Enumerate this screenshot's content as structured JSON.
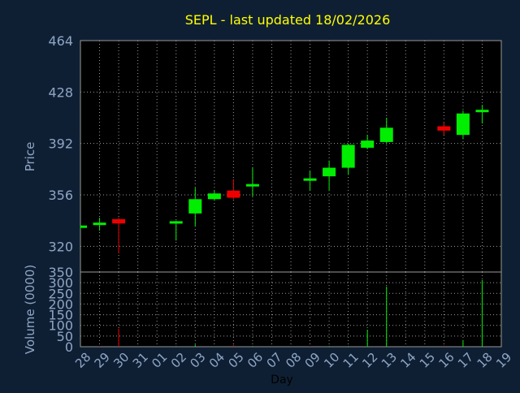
{
  "colors": {
    "background": "#0f1f33",
    "plot_background": "#000000",
    "up": "#00ee00",
    "down": "#ee0000",
    "title": "#ffff00",
    "axis_text": "#8ea6c6",
    "grid": "#9a9a9a"
  },
  "chart_data": [
    {
      "type": "candlestick",
      "title": "SEPL - last updated 18/02/2026",
      "ylabel": "Price",
      "ylim": [
        302,
        464
      ],
      "yticks": [
        464,
        428,
        392,
        356,
        320
      ],
      "grid": true,
      "x": [
        "28",
        "29",
        "30",
        "31",
        "01",
        "02",
        "03",
        "04",
        "05",
        "06",
        "07",
        "08",
        "09",
        "10",
        "11",
        "12",
        "13",
        "14",
        "15",
        "16",
        "17",
        "18",
        "19"
      ],
      "candles": [
        {
          "x": "28",
          "open": 333,
          "high": 334,
          "low": 332,
          "close": 334
        },
        {
          "x": "29",
          "open": 336,
          "high": 340,
          "low": 331,
          "close": 336
        },
        {
          "x": "30",
          "open": 339,
          "high": 340,
          "low": 315,
          "close": 336
        },
        {
          "x": "02",
          "open": 337,
          "high": 338,
          "low": 324,
          "close": 337
        },
        {
          "x": "03",
          "open": 343,
          "high": 361,
          "low": 334,
          "close": 353
        },
        {
          "x": "04",
          "open": 353,
          "high": 359,
          "low": 352,
          "close": 357
        },
        {
          "x": "05",
          "open": 359,
          "high": 367,
          "low": 353,
          "close": 354
        },
        {
          "x": "06",
          "open": 363,
          "high": 375,
          "low": 355,
          "close": 363
        },
        {
          "x": "09",
          "open": 367,
          "high": 373,
          "low": 359,
          "close": 367
        },
        {
          "x": "10",
          "open": 369,
          "high": 380,
          "low": 359,
          "close": 375
        },
        {
          "x": "11",
          "open": 375,
          "high": 392,
          "low": 370,
          "close": 391
        },
        {
          "x": "12",
          "open": 389,
          "high": 398,
          "low": 388,
          "close": 394
        },
        {
          "x": "13",
          "open": 393,
          "high": 410,
          "low": 392,
          "close": 403
        },
        {
          "x": "16",
          "open": 404,
          "high": 407,
          "low": 398,
          "close": 401
        },
        {
          "x": "17",
          "open": 398,
          "high": 415,
          "low": 395,
          "close": 413
        },
        {
          "x": "18",
          "open": 414,
          "high": 419,
          "low": 406,
          "close": 415
        }
      ]
    },
    {
      "type": "bar",
      "ylabel": "Volume (0000)",
      "xlabel": "Day",
      "ylim": [
        0,
        350
      ],
      "yticks": [
        350,
        300,
        250,
        200,
        150,
        100,
        50,
        0
      ],
      "grid": true,
      "x": [
        "28",
        "29",
        "30",
        "31",
        "01",
        "02",
        "03",
        "04",
        "05",
        "06",
        "07",
        "08",
        "09",
        "10",
        "11",
        "12",
        "13",
        "14",
        "15",
        "16",
        "17",
        "18",
        "19"
      ],
      "bars": [
        {
          "x": "28",
          "value": 3,
          "dir": "up"
        },
        {
          "x": "29",
          "value": 3,
          "dir": "down"
        },
        {
          "x": "30",
          "value": 85,
          "dir": "down"
        },
        {
          "x": "02",
          "value": 3,
          "dir": "up"
        },
        {
          "x": "03",
          "value": 10,
          "dir": "up"
        },
        {
          "x": "04",
          "value": 2,
          "dir": "up"
        },
        {
          "x": "05",
          "value": 8,
          "dir": "down"
        },
        {
          "x": "06",
          "value": 3,
          "dir": "up"
        },
        {
          "x": "09",
          "value": 3,
          "dir": "down"
        },
        {
          "x": "10",
          "value": 3,
          "dir": "up"
        },
        {
          "x": "11",
          "value": 3,
          "dir": "up"
        },
        {
          "x": "12",
          "value": 80,
          "dir": "up"
        },
        {
          "x": "13",
          "value": 282,
          "dir": "up"
        },
        {
          "x": "16",
          "value": 5,
          "dir": "down"
        },
        {
          "x": "17",
          "value": 30,
          "dir": "up"
        },
        {
          "x": "18",
          "value": 312,
          "dir": "up"
        }
      ]
    }
  ]
}
